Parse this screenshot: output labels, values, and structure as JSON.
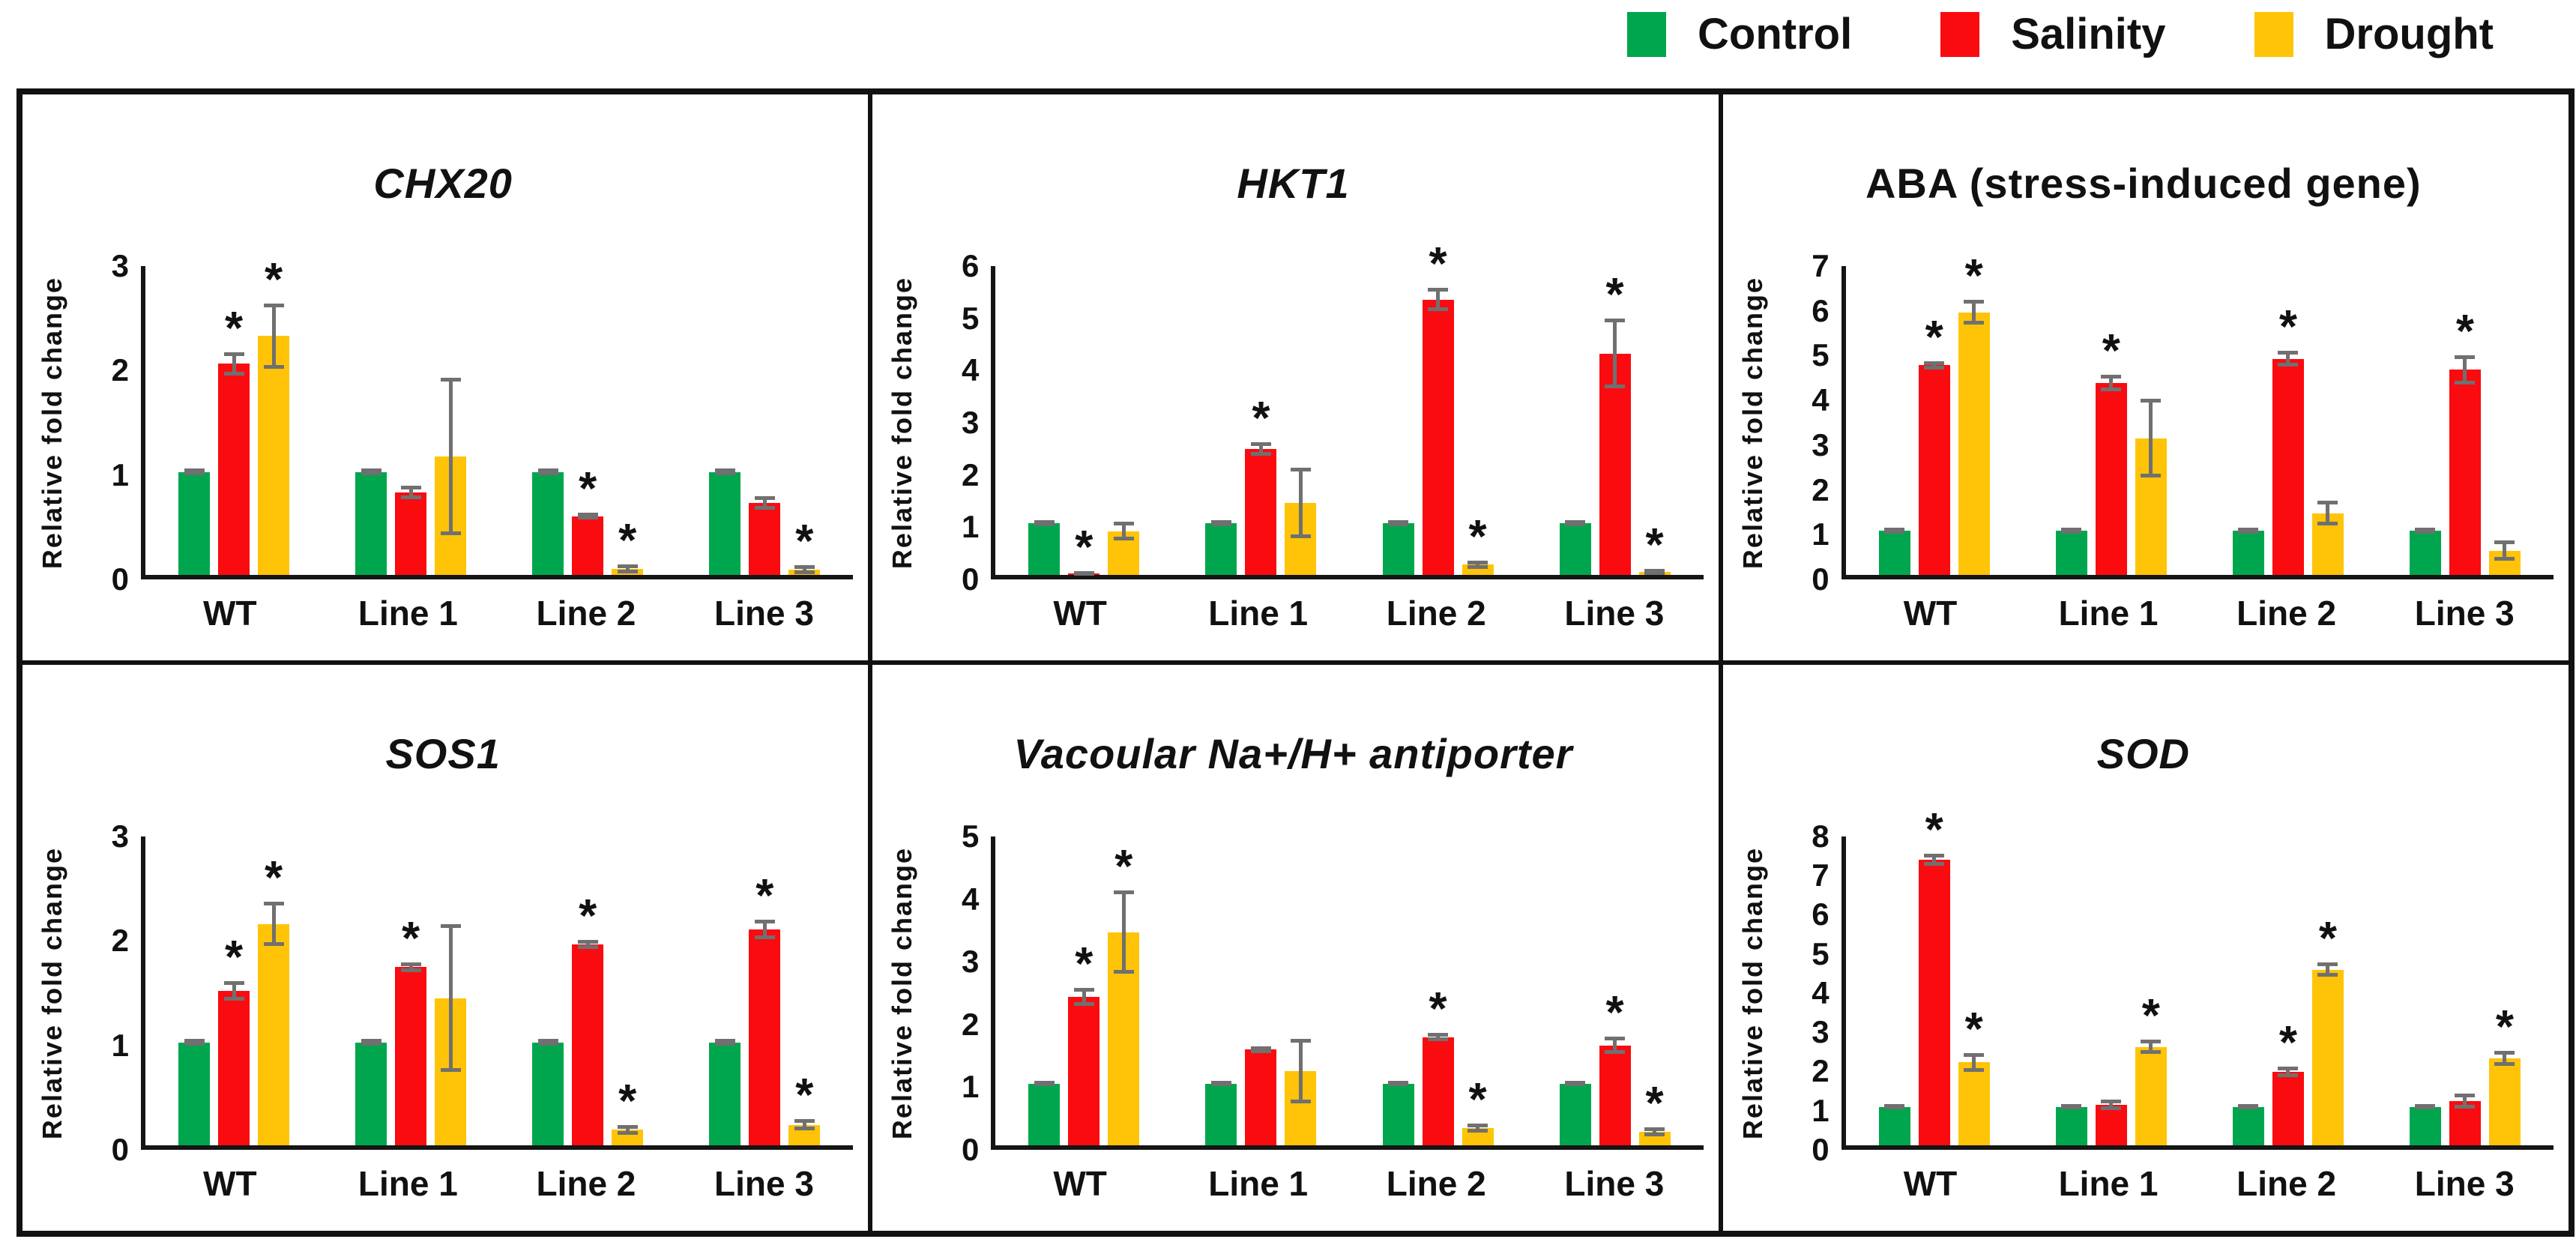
{
  "legend": {
    "items": [
      {
        "label": "Control",
        "color": "#00A64D"
      },
      {
        "label": "Salinity",
        "color": "#FA0B10"
      },
      {
        "label": "Drought",
        "color": "#FFC407"
      }
    ]
  },
  "colors": {
    "control": "#00A64D",
    "salinity": "#FA0B10",
    "drought": "#FFC407",
    "error_bar": "#707070",
    "axis": "#151515",
    "border": "#111111"
  },
  "chart_data": [
    {
      "type": "bar",
      "title": "CHX20",
      "title_italic": true,
      "ylabel": "Relative fold change",
      "xlabel": "",
      "ylim": [
        0,
        3
      ],
      "yticks": [
        0,
        1,
        2,
        3
      ],
      "grid": false,
      "legend_position": "top-right-of-figure",
      "categories": [
        "WT",
        "Line 1",
        "Line 2",
        "Line 3"
      ],
      "series": [
        {
          "name": "Control",
          "color": "#00A64D",
          "values": [
            1.0,
            1.0,
            1.0,
            1.0
          ],
          "errors": [
            0.02,
            0.02,
            0.02,
            0.02
          ],
          "sig": [
            false,
            false,
            false,
            false
          ]
        },
        {
          "name": "Salinity",
          "color": "#FA0B10",
          "values": [
            2.05,
            0.8,
            0.57,
            0.7
          ],
          "errors": [
            0.1,
            0.05,
            0.02,
            0.05
          ],
          "sig": [
            true,
            false,
            true,
            false
          ]
        },
        {
          "name": "Drought",
          "color": "#FFC407",
          "values": [
            2.32,
            1.15,
            0.06,
            0.05
          ],
          "errors": [
            0.3,
            0.75,
            0.03,
            0.03
          ],
          "sig": [
            true,
            false,
            true,
            true
          ]
        }
      ]
    },
    {
      "type": "bar",
      "title": "HKT1",
      "title_italic": true,
      "ylabel": "Relative fold change",
      "xlabel": "",
      "ylim": [
        0,
        6
      ],
      "yticks": [
        0,
        1,
        2,
        3,
        4,
        5,
        6
      ],
      "grid": false,
      "categories": [
        "WT",
        "Line 1",
        "Line 2",
        "Line 3"
      ],
      "series": [
        {
          "name": "Control",
          "color": "#00A64D",
          "values": [
            1.0,
            1.0,
            1.0,
            1.0
          ],
          "errors": [
            0.03,
            0.03,
            0.03,
            0.03
          ],
          "sig": [
            false,
            false,
            false,
            false
          ]
        },
        {
          "name": "Salinity",
          "color": "#FA0B10",
          "values": [
            0.03,
            2.45,
            5.35,
            4.3
          ],
          "errors": [
            0.02,
            0.1,
            0.2,
            0.65
          ],
          "sig": [
            true,
            true,
            true,
            true
          ]
        },
        {
          "name": "Drought",
          "color": "#FFC407",
          "values": [
            0.85,
            1.4,
            0.2,
            0.06
          ],
          "errors": [
            0.15,
            0.65,
            0.05,
            0.03
          ],
          "sig": [
            false,
            false,
            true,
            true
          ]
        }
      ]
    },
    {
      "type": "bar",
      "title": "ABA (stress-induced gene)",
      "title_italic": false,
      "ylabel": "Relative fold change",
      "xlabel": "",
      "ylim": [
        0,
        7
      ],
      "yticks": [
        0,
        1,
        2,
        3,
        4,
        5,
        6,
        7
      ],
      "grid": false,
      "categories": [
        "WT",
        "Line 1",
        "Line 2",
        "Line 3"
      ],
      "series": [
        {
          "name": "Control",
          "color": "#00A64D",
          "values": [
            1.0,
            1.0,
            1.0,
            1.0
          ],
          "errors": [
            0.03,
            0.03,
            0.03,
            0.03
          ],
          "sig": [
            false,
            false,
            false,
            false
          ]
        },
        {
          "name": "Salinity",
          "color": "#FA0B10",
          "values": [
            4.75,
            4.35,
            4.9,
            4.65
          ],
          "errors": [
            0.06,
            0.15,
            0.15,
            0.3
          ],
          "sig": [
            true,
            true,
            true,
            true
          ]
        },
        {
          "name": "Drought",
          "color": "#FFC407",
          "values": [
            5.95,
            3.1,
            1.4,
            0.55
          ],
          "errors": [
            0.25,
            0.85,
            0.25,
            0.2
          ],
          "sig": [
            true,
            false,
            false,
            false
          ]
        }
      ]
    },
    {
      "type": "bar",
      "title": "SOS1",
      "title_italic": true,
      "ylabel": "Relative fold change",
      "xlabel": "",
      "ylim": [
        0,
        3
      ],
      "yticks": [
        0,
        1,
        2,
        3
      ],
      "grid": false,
      "categories": [
        "WT",
        "Line 1",
        "Line 2",
        "Line 3"
      ],
      "series": [
        {
          "name": "Control",
          "color": "#00A64D",
          "values": [
            1.0,
            1.0,
            1.0,
            1.0
          ],
          "errors": [
            0.02,
            0.02,
            0.02,
            0.02
          ],
          "sig": [
            false,
            false,
            false,
            false
          ]
        },
        {
          "name": "Salinity",
          "color": "#FA0B10",
          "values": [
            1.5,
            1.73,
            1.95,
            2.1
          ],
          "errors": [
            0.08,
            0.03,
            0.03,
            0.08
          ],
          "sig": [
            true,
            true,
            true,
            true
          ]
        },
        {
          "name": "Drought",
          "color": "#FFC407",
          "values": [
            2.15,
            1.43,
            0.15,
            0.2
          ],
          "errors": [
            0.2,
            0.7,
            0.03,
            0.04
          ],
          "sig": [
            true,
            false,
            true,
            true
          ]
        }
      ]
    },
    {
      "type": "bar",
      "title": "Vacoular Na+/H+ antiporter",
      "title_italic": true,
      "ylabel": "Relative fold change",
      "xlabel": "",
      "ylim": [
        0,
        5
      ],
      "yticks": [
        0,
        1,
        2,
        3,
        4,
        5
      ],
      "grid": false,
      "categories": [
        "WT",
        "Line 1",
        "Line 2",
        "Line 3"
      ],
      "series": [
        {
          "name": "Control",
          "color": "#00A64D",
          "values": [
            1.0,
            1.0,
            1.0,
            1.0
          ],
          "errors": [
            0.02,
            0.02,
            0.02,
            0.02
          ],
          "sig": [
            false,
            false,
            false,
            false
          ]
        },
        {
          "name": "Salinity",
          "color": "#FA0B10",
          "values": [
            2.4,
            1.55,
            1.75,
            1.62
          ],
          "errors": [
            0.12,
            0.03,
            0.04,
            0.12
          ],
          "sig": [
            true,
            false,
            true,
            true
          ]
        },
        {
          "name": "Drought",
          "color": "#FFC407",
          "values": [
            3.45,
            1.2,
            0.28,
            0.22
          ],
          "errors": [
            0.65,
            0.5,
            0.05,
            0.05
          ],
          "sig": [
            true,
            false,
            true,
            true
          ]
        }
      ]
    },
    {
      "type": "bar",
      "title": "SOD",
      "title_italic": true,
      "ylabel": "Relative fold change",
      "xlabel": "",
      "ylim": [
        0,
        8
      ],
      "yticks": [
        0,
        1,
        2,
        3,
        4,
        5,
        6,
        7,
        8
      ],
      "grid": false,
      "categories": [
        "WT",
        "Line 1",
        "Line 2",
        "Line 3"
      ],
      "series": [
        {
          "name": "Control",
          "color": "#00A64D",
          "values": [
            1.0,
            1.0,
            1.0,
            1.0
          ],
          "errors": [
            0.03,
            0.03,
            0.03,
            0.03
          ],
          "sig": [
            false,
            false,
            false,
            false
          ]
        },
        {
          "name": "Salinity",
          "color": "#FA0B10",
          "values": [
            7.4,
            1.05,
            1.9,
            1.15
          ],
          "errors": [
            0.12,
            0.1,
            0.1,
            0.15
          ],
          "sig": [
            true,
            false,
            true,
            false
          ]
        },
        {
          "name": "Drought",
          "color": "#FFC407",
          "values": [
            2.15,
            2.55,
            4.55,
            2.25
          ],
          "errors": [
            0.2,
            0.15,
            0.15,
            0.15
          ],
          "sig": [
            true,
            true,
            true,
            true
          ]
        }
      ]
    }
  ]
}
